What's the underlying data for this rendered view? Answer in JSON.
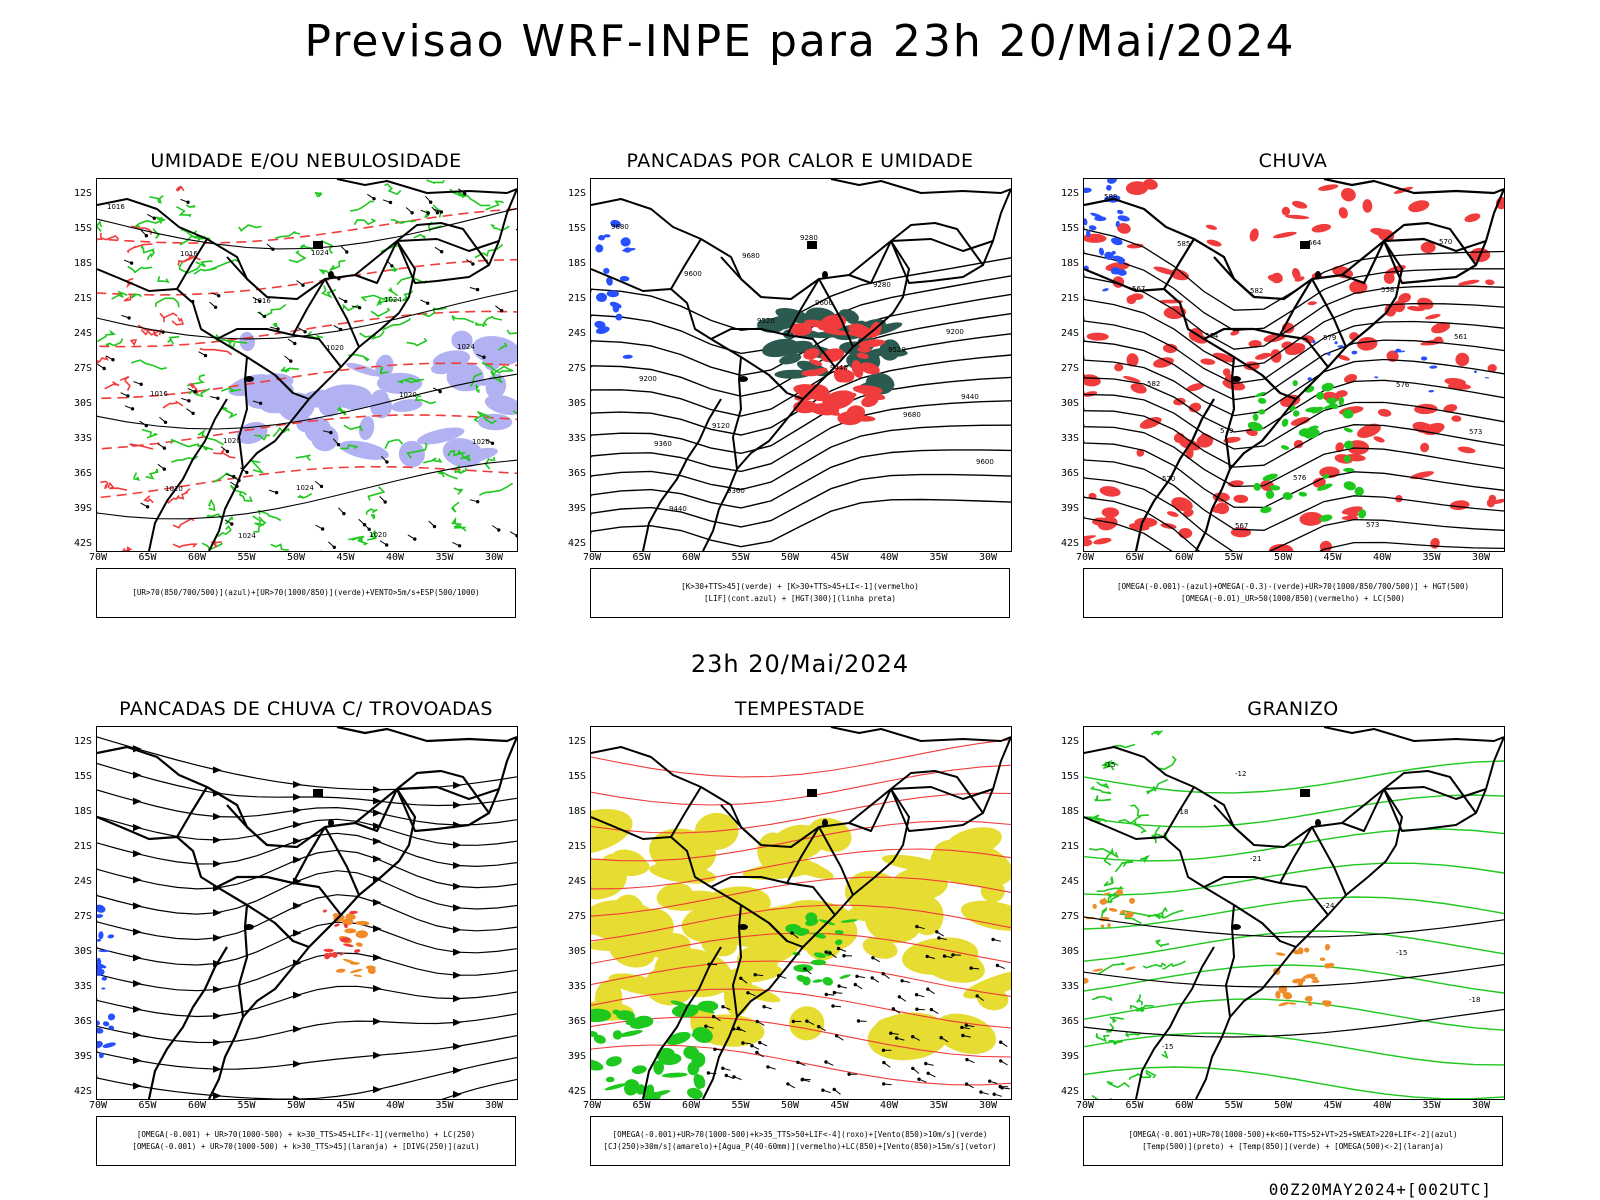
{
  "title": "Previsao WRF-INPE  para 23h 20/Mai/2024",
  "mid_label": "23h 20/Mai/2024",
  "footer": "00Z20MAY2024+[002UTC]",
  "lat_labels": [
    "12S",
    "15S",
    "18S",
    "21S",
    "24S",
    "27S",
    "30S",
    "33S",
    "36S",
    "39S",
    "42S"
  ],
  "lon_labels": [
    "70W",
    "65W",
    "60W",
    "55W",
    "50W",
    "45W",
    "40W",
    "35W",
    "30W"
  ],
  "panels": [
    {
      "title": "UMIDADE E/OU NEBULOSIDADE",
      "legend": [
        "[UR>70(850/700/500)](azul)+[UR>70(1000/850)](verde)+VENTO>5m/s+ESP(500/1000)"
      ]
    },
    {
      "title": "PANCADAS POR CALOR E UMIDADE",
      "legend": [
        "[K>30+TTS>45](verde) + [K>30+TTS>45+LI<-1](vermelho)",
        "[LIF](cont.azul) + [HGT(300)](linha preta)"
      ]
    },
    {
      "title": "CHUVA",
      "legend": [
        "[OMEGA(-0.001)-(azul)+OMEGA(-0.3)-(verde)+UR>70(1000/850/700/500)] + HGT(500)",
        "[OMEGA(-0.01)_UR>50(1000/850)(vermelho) + LC(500)"
      ]
    },
    {
      "title": "PANCADAS DE CHUVA C/ TROVOADAS",
      "legend": [
        "[OMEGA(-0.001) + UR>70(1000-500) + k>30_TTS>45+LIF<-1](vermelho) + LC(250)",
        "[OMEGA(-0.001) + UR>70(1000-500) + k>30_TTS>45](laranja) + [DIVG(250)](azul)"
      ]
    },
    {
      "title": "TEMPESTADE",
      "legend": [
        "[OMEGA(-0.001)+UR>70(1000-500)+k>35_TTS>50+LIF<-4](roxo)+[Vento(850)>10m/s](verde)",
        "[CJ(250)>30m/s](amarelo)+[Agua_P(40-60mm)](vermelho)+LC(850)+[Vento(850)>15m/s](vetor)"
      ]
    },
    {
      "title": "GRANIZO",
      "legend": [
        "[OMEGA(-0.001)+UR>70(1000-500)+k<60+TTS>52+VT>25+SWEAT>220+LIF<-2](azul)",
        "[Temp(500)](preto) + [Temp(850)](verde) + [OMEGA(500)<-2](laranja)"
      ]
    }
  ],
  "contour_labels": {
    "p1": [
      "1016",
      "1016",
      "1016",
      "1020",
      "1020",
      "1020",
      "1020",
      "1024",
      "1024",
      "1024",
      "1024",
      "1016",
      "1020",
      "1024",
      "1020"
    ],
    "p2": [
      "9680",
      "9600",
      "9520",
      "9440",
      "9680",
      "9600",
      "9440",
      "9680",
      "9600",
      "9520",
      "9440",
      "9360",
      "9360",
      "9280",
      "9280",
      "9200",
      "9200",
      "9120"
    ],
    "p3": [
      "588",
      "585",
      "582",
      "579",
      "576",
      "573",
      "570",
      "567",
      "564",
      "558",
      "561",
      "582",
      "579",
      "576",
      "573",
      "570",
      "567",
      "564"
    ],
    "p6": [
      "-15",
      "-18",
      "-21",
      "-24",
      "-15",
      "-18",
      "-15",
      "-12"
    ]
  },
  "colors": {
    "green": "#1ec81e",
    "red": "#f03c3c",
    "blue": "#2850ff",
    "lavender": "#a0a0f0",
    "yellow": "#e6dc32",
    "teal": "#2d5a50",
    "orange": "#f08c28"
  }
}
